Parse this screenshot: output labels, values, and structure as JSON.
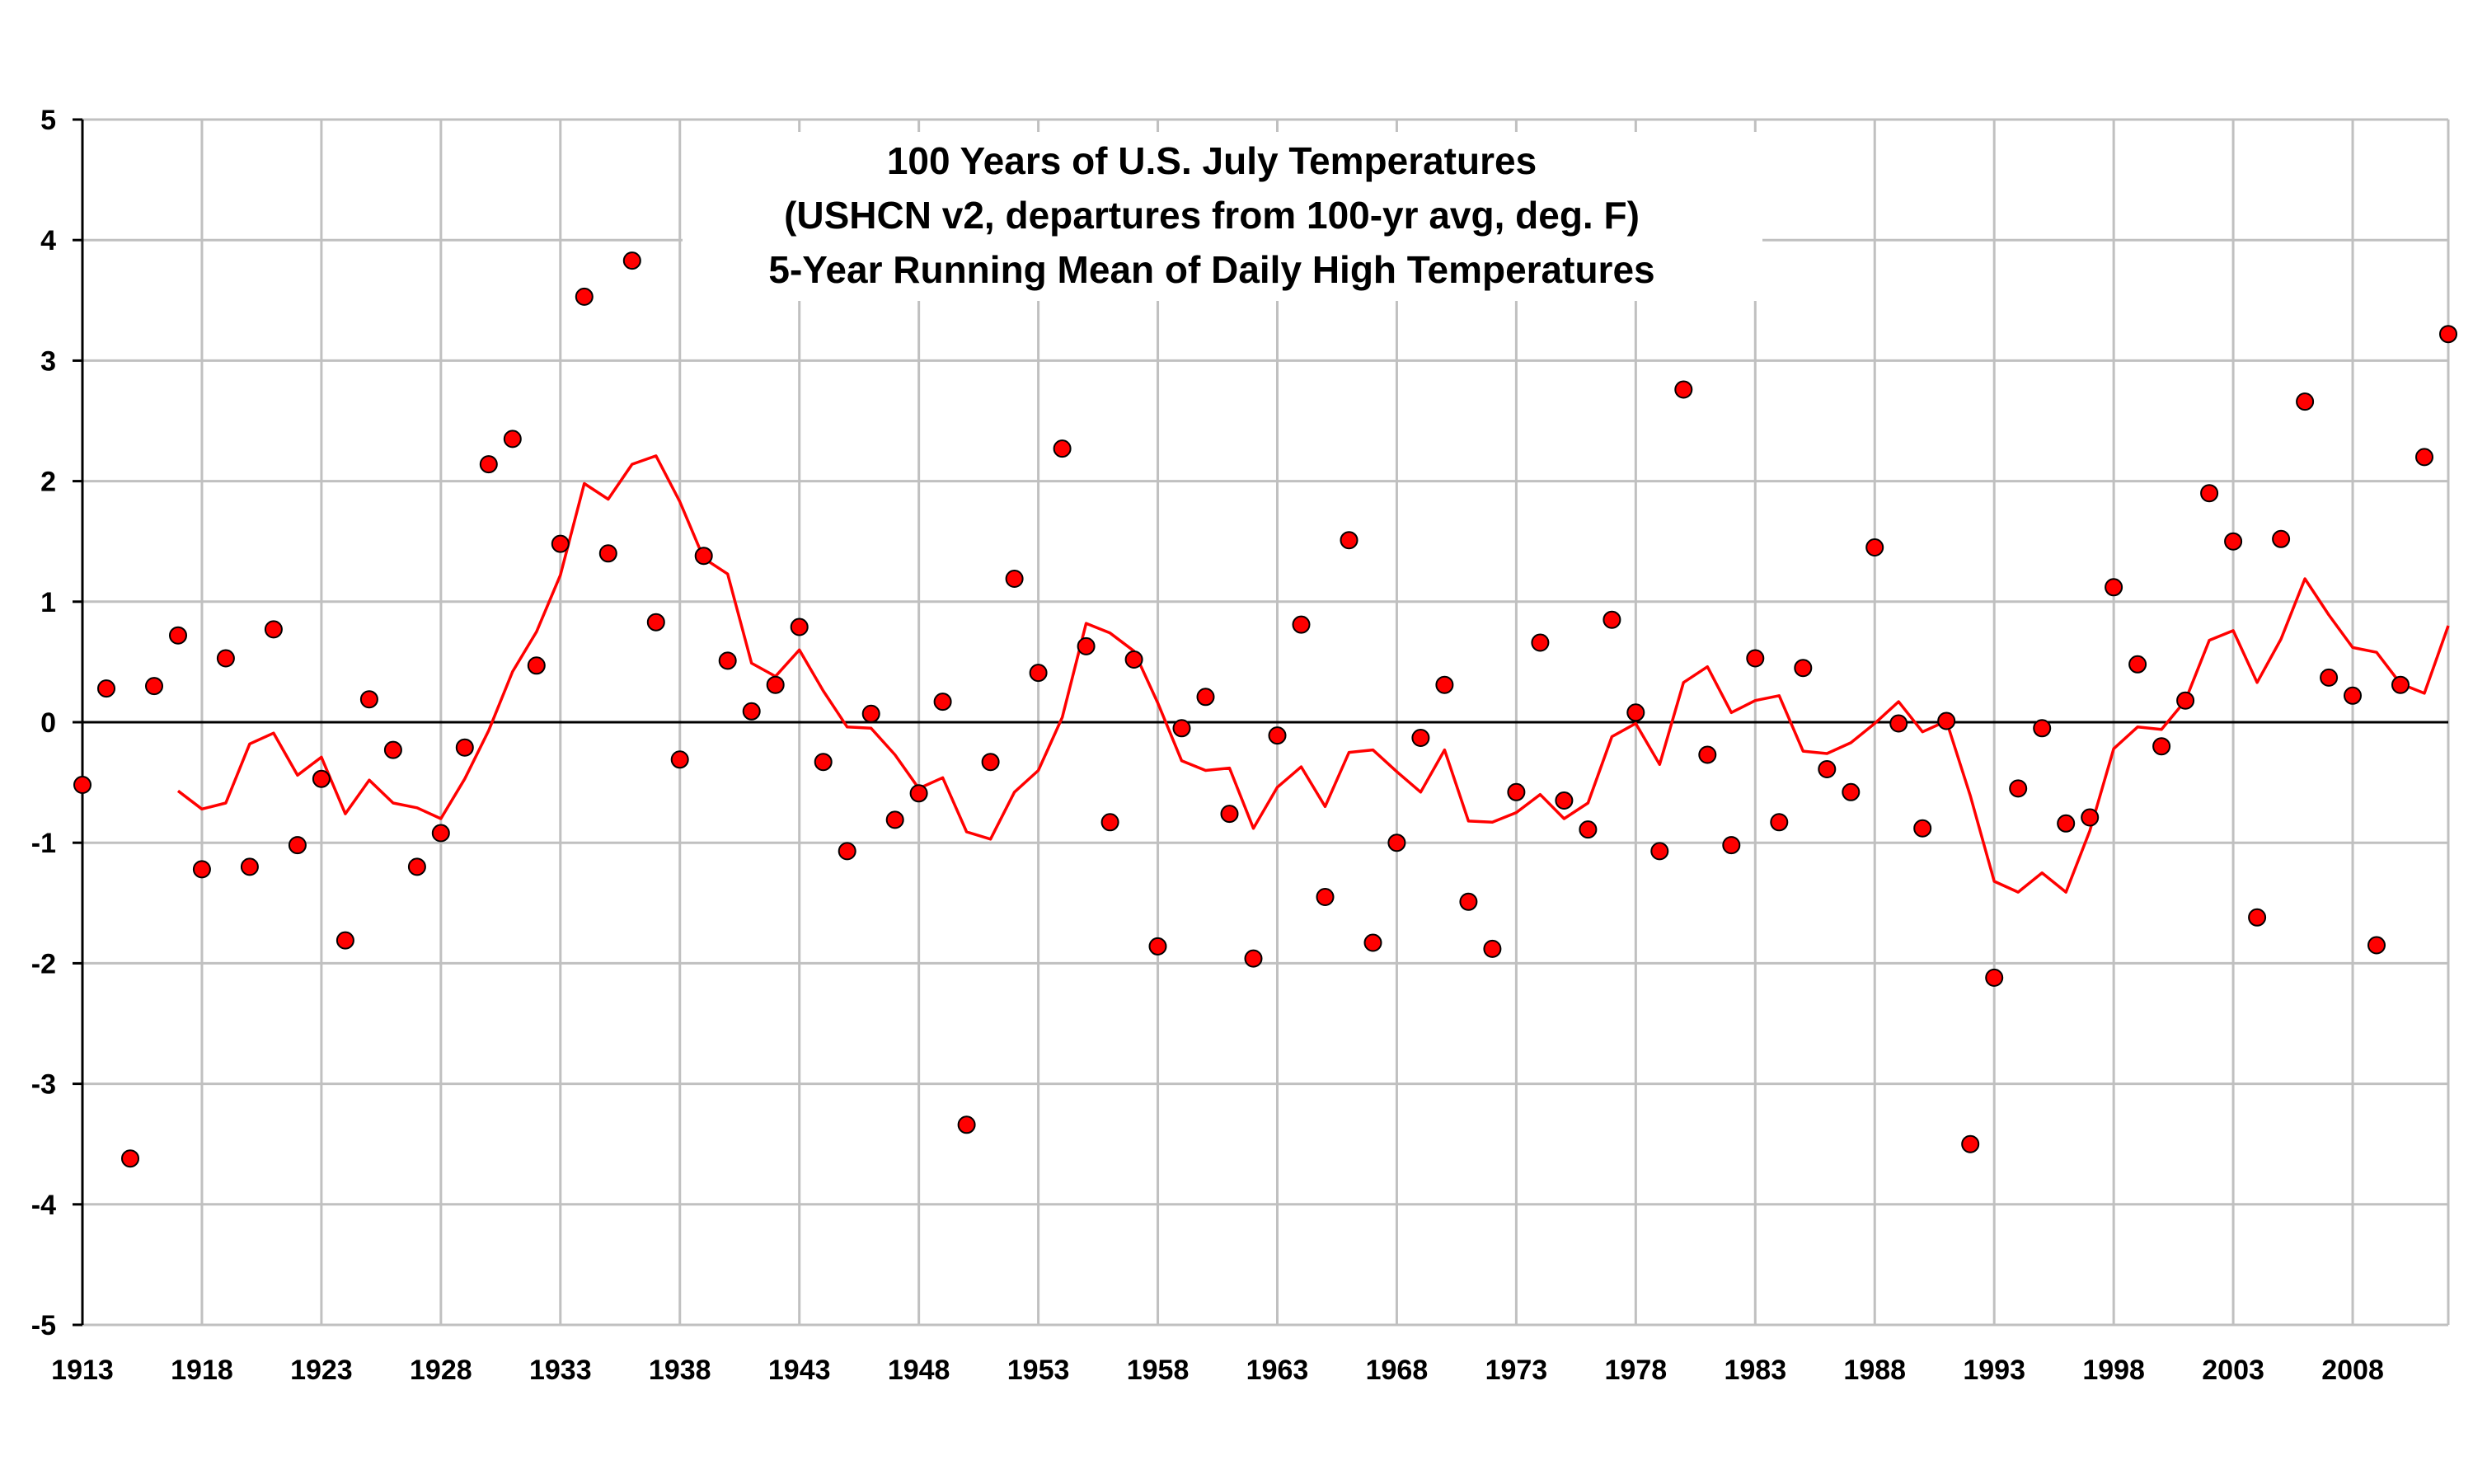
{
  "chart_data": {
    "type": "scatter",
    "title": [
      "100 Years of U.S. July Temperatures",
      "(USHCN v2, departures from 100-yr avg, deg. F)",
      "5-Year Running Mean of Daily High Temperatures"
    ],
    "xlabel": "",
    "ylabel": "",
    "xlim": [
      1913,
      2012
    ],
    "ylim": [
      -5,
      5
    ],
    "x_ticks": [
      1913,
      1918,
      1923,
      1928,
      1933,
      1938,
      1943,
      1948,
      1953,
      1958,
      1963,
      1968,
      1973,
      1978,
      1983,
      1988,
      1993,
      1998,
      2003,
      2008
    ],
    "y_ticks": [
      5,
      4,
      3,
      2,
      1,
      0,
      -1,
      -2,
      -3,
      -4,
      -5
    ],
    "grid": true,
    "zero_line": true,
    "legend": "none",
    "colors": {
      "marker": "#ff0000",
      "marker_edge": "#000000",
      "line": "#ff0000",
      "grid": "#c0c0c0",
      "zero_line": "#000000"
    },
    "series": [
      {
        "kind": "scatter",
        "x": [
          1913,
          1914,
          1915,
          1916,
          1917,
          1918,
          1919,
          1920,
          1921,
          1922,
          1923,
          1924,
          1925,
          1926,
          1927,
          1928,
          1929,
          1930,
          1931,
          1932,
          1933,
          1934,
          1935,
          1936,
          1937,
          1938,
          1939,
          1940,
          1941,
          1942,
          1943,
          1944,
          1945,
          1946,
          1947,
          1948,
          1949,
          1950,
          1951,
          1952,
          1953,
          1954,
          1955,
          1956,
          1957,
          1958,
          1959,
          1960,
          1961,
          1962,
          1963,
          1964,
          1965,
          1966,
          1967,
          1968,
          1969,
          1970,
          1971,
          1972,
          1973,
          1974,
          1975,
          1976,
          1977,
          1978,
          1979,
          1980,
          1981,
          1982,
          1983,
          1984,
          1985,
          1986,
          1987,
          1988,
          1989,
          1990,
          1991,
          1992,
          1993,
          1994,
          1995,
          1996,
          1997,
          1998,
          1999,
          2000,
          2001,
          2002,
          2003,
          2004,
          2005,
          2006,
          2007,
          2008,
          2009,
          2010,
          2011,
          2012
        ],
        "y": [
          -0.52,
          0.28,
          -3.62,
          0.3,
          0.72,
          -1.22,
          0.53,
          -1.2,
          0.77,
          -1.02,
          -0.47,
          -1.81,
          0.19,
          -0.23,
          -1.2,
          -0.92,
          -0.21,
          2.14,
          2.35,
          0.47,
          1.48,
          3.53,
          1.4,
          3.83,
          0.83,
          -0.31,
          1.38,
          0.51,
          0.09,
          0.31,
          0.79,
          -0.33,
          -1.07,
          0.07,
          -0.81,
          -0.59,
          0.17,
          -3.34,
          -0.33,
          1.19,
          0.41,
          2.27,
          0.63,
          -0.83,
          0.52,
          -1.86,
          -0.05,
          0.21,
          -0.76,
          -1.96,
          -0.11,
          0.81,
          -1.45,
          1.51,
          -1.83,
          -1.0,
          -0.13,
          0.31,
          -1.49,
          -1.88,
          -0.58,
          0.66,
          -0.65,
          -0.89,
          0.85,
          0.08,
          -1.07,
          2.76,
          -0.27,
          -1.02,
          0.53,
          -0.83,
          0.45,
          -0.39,
          -0.58,
          1.45,
          -0.01,
          -0.88,
          0.01,
          -3.5,
          -2.12,
          -0.55,
          -0.05,
          -0.84,
          -0.79,
          1.12,
          0.48,
          -0.2,
          0.18,
          1.9,
          1.5,
          -1.62,
          1.52,
          2.66,
          0.37,
          0.22,
          -1.85,
          0.31,
          2.2,
          3.22
        ]
      },
      {
        "kind": "line",
        "x": [
          1917,
          1918,
          1919,
          1920,
          1921,
          1922,
          1923,
          1924,
          1925,
          1926,
          1927,
          1928,
          1929,
          1930,
          1931,
          1932,
          1933,
          1934,
          1935,
          1936,
          1937,
          1938,
          1939,
          1940,
          1941,
          1942,
          1943,
          1944,
          1945,
          1946,
          1947,
          1948,
          1949,
          1950,
          1951,
          1952,
          1953,
          1954,
          1955,
          1956,
          1957,
          1958,
          1959,
          1960,
          1961,
          1962,
          1963,
          1964,
          1965,
          1966,
          1967,
          1968,
          1969,
          1970,
          1971,
          1972,
          1973,
          1974,
          1975,
          1976,
          1977,
          1978,
          1979,
          1980,
          1981,
          1982,
          1983,
          1984,
          1985,
          1986,
          1987,
          1988,
          1989,
          1990,
          1991,
          1992,
          1993,
          1994,
          1995,
          1996,
          1997,
          1998,
          1999,
          2000,
          2001,
          2002,
          2003,
          2004,
          2005,
          2006,
          2007,
          2008,
          2009,
          2010,
          2011,
          2012
        ],
        "y": [
          -0.57,
          -0.72,
          -0.67,
          -0.18,
          -0.09,
          -0.44,
          -0.29,
          -0.76,
          -0.48,
          -0.67,
          -0.71,
          -0.8,
          -0.47,
          -0.07,
          0.42,
          0.75,
          1.22,
          1.98,
          1.85,
          2.14,
          2.21,
          1.83,
          1.36,
          1.23,
          0.49,
          0.38,
          0.6,
          0.26,
          -0.04,
          -0.05,
          -0.27,
          -0.55,
          -0.46,
          -0.91,
          -0.97,
          -0.58,
          -0.4,
          0.04,
          0.82,
          0.74,
          0.59,
          0.16,
          -0.32,
          -0.4,
          -0.38,
          -0.88,
          -0.54,
          -0.37,
          -0.7,
          -0.25,
          -0.23,
          -0.41,
          -0.58,
          -0.23,
          -0.82,
          -0.83,
          -0.75,
          -0.6,
          -0.8,
          -0.67,
          -0.12,
          -0.01,
          -0.35,
          0.33,
          0.46,
          0.08,
          0.18,
          0.22,
          -0.24,
          -0.26,
          -0.17,
          -0.01,
          0.17,
          -0.08,
          0.01,
          -0.61,
          -1.32,
          -1.41,
          -1.25,
          -1.41,
          -0.9,
          -0.22,
          -0.04,
          -0.06,
          0.18,
          0.68,
          0.76,
          0.33,
          0.69,
          1.19,
          0.89,
          0.62,
          0.58,
          0.32,
          0.24,
          0.8
        ]
      }
    ]
  }
}
